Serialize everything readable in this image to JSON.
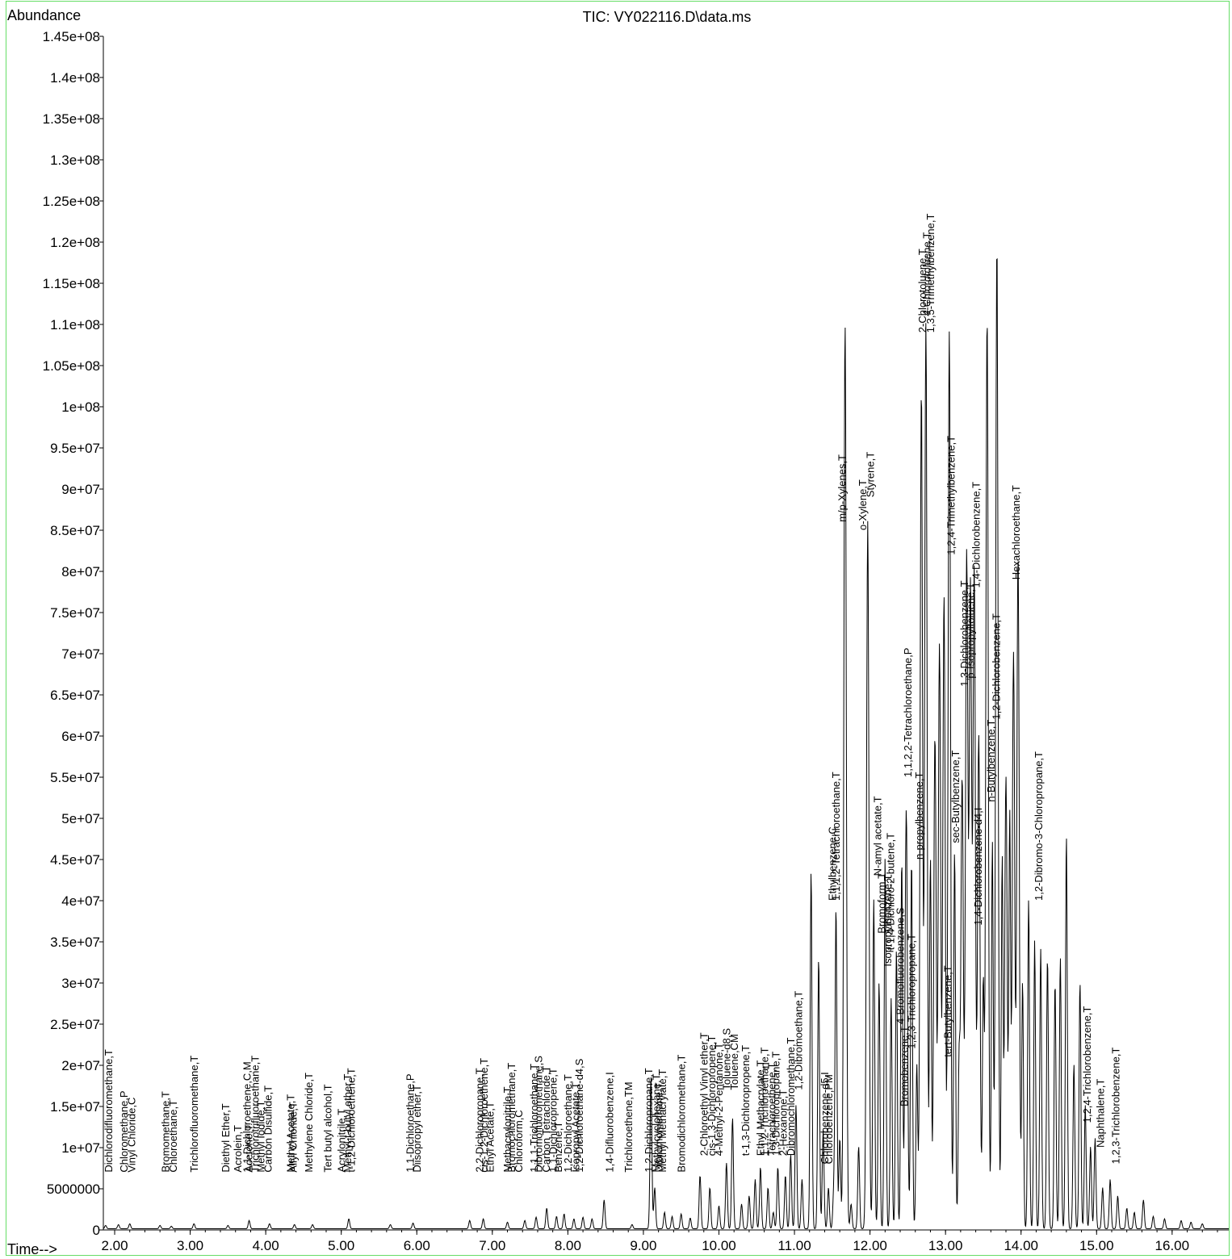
{
  "chart_data": {
    "type": "line",
    "title": "TIC: VY022116.D\\data.ms",
    "ylabel": "Abundance",
    "xlabel": "Time-->",
    "xlim": [
      1.85,
      16.75
    ],
    "ylim": [
      0,
      145000000
    ],
    "x_ticks": [
      2.0,
      3.0,
      4.0,
      5.0,
      6.0,
      7.0,
      8.0,
      9.0,
      10.0,
      11.0,
      12.0,
      13.0,
      14.0,
      15.0,
      16.0
    ],
    "x_tick_labels": [
      "2.00",
      "3.00",
      "4.00",
      "5.00",
      "6.00",
      "7.00",
      "8.00",
      "9.00",
      "10.00",
      "11.00",
      "12.00",
      "13.00",
      "14.00",
      "15.00",
      "16.00"
    ],
    "y_ticks": [
      0,
      5000000,
      10000000,
      15000000,
      20000000,
      25000000,
      30000000,
      35000000,
      40000000,
      45000000,
      50000000,
      55000000,
      60000000,
      65000000,
      70000000,
      75000000,
      80000000,
      85000000,
      90000000,
      95000000,
      100000000,
      105000000,
      110000000,
      115000000,
      120000000,
      125000000,
      130000000,
      135000000,
      140000000,
      145000000
    ],
    "y_tick_labels": [
      "0",
      "5000000",
      "1e+07",
      "1.5e+07",
      "2e+07",
      "2.5e+07",
      "3e+07",
      "3.5e+07",
      "4e+07",
      "4.5e+07",
      "5e+07",
      "5.5e+07",
      "6e+07",
      "6.5e+07",
      "7e+07",
      "7.5e+07",
      "8e+07",
      "8.5e+07",
      "9e+07",
      "9.5e+07",
      "1e+08",
      "1.05e+08",
      "1.1e+08",
      "1.15e+08",
      "1.2e+08",
      "1.25e+08",
      "1.3e+08",
      "1.35e+08",
      "1.4e+08",
      "1.45e+08"
    ],
    "series": [
      {
        "color": "#000000",
        "peaks": [
          {
            "rt": 1.88,
            "h": 400000
          },
          {
            "rt": 2.05,
            "h": 500000
          },
          {
            "rt": 2.2,
            "h": 600000
          },
          {
            "rt": 2.6,
            "h": 400000
          },
          {
            "rt": 2.75,
            "h": 300000
          },
          {
            "rt": 3.05,
            "h": 600000
          },
          {
            "rt": 3.5,
            "h": 400000
          },
          {
            "rt": 3.78,
            "h": 1000000
          },
          {
            "rt": 4.05,
            "h": 600000
          },
          {
            "rt": 4.38,
            "h": 500000
          },
          {
            "rt": 4.62,
            "h": 500000
          },
          {
            "rt": 5.1,
            "h": 1200000
          },
          {
            "rt": 5.65,
            "h": 500000
          },
          {
            "rt": 5.95,
            "h": 700000
          },
          {
            "rt": 6.7,
            "h": 1000000
          },
          {
            "rt": 6.88,
            "h": 1200000
          },
          {
            "rt": 7.2,
            "h": 800000
          },
          {
            "rt": 7.43,
            "h": 1000000
          },
          {
            "rt": 7.58,
            "h": 1400000
          },
          {
            "rt": 7.72,
            "h": 2500000
          },
          {
            "rt": 7.85,
            "h": 1500000
          },
          {
            "rt": 7.95,
            "h": 1800000
          },
          {
            "rt": 8.08,
            "h": 1200000
          },
          {
            "rt": 8.2,
            "h": 1400000
          },
          {
            "rt": 8.32,
            "h": 1200000
          },
          {
            "rt": 8.48,
            "h": 3500000
          },
          {
            "rt": 8.85,
            "h": 500000
          },
          {
            "rt": 9.1,
            "h": 18500000
          },
          {
            "rt": 9.15,
            "h": 5000000
          },
          {
            "rt": 9.28,
            "h": 2000000
          },
          {
            "rt": 9.38,
            "h": 1500000
          },
          {
            "rt": 9.5,
            "h": 1800000
          },
          {
            "rt": 9.62,
            "h": 1300000
          },
          {
            "rt": 9.75,
            "h": 6500000
          },
          {
            "rt": 9.88,
            "h": 5000000
          },
          {
            "rt": 10.0,
            "h": 2800000
          },
          {
            "rt": 10.1,
            "h": 8000000
          },
          {
            "rt": 10.18,
            "h": 13500000
          },
          {
            "rt": 10.3,
            "h": 3000000
          },
          {
            "rt": 10.4,
            "h": 4000000
          },
          {
            "rt": 10.48,
            "h": 6000000
          },
          {
            "rt": 10.55,
            "h": 7500000
          },
          {
            "rt": 10.65,
            "h": 5000000
          },
          {
            "rt": 10.72,
            "h": 2000000
          },
          {
            "rt": 10.78,
            "h": 7500000
          },
          {
            "rt": 10.88,
            "h": 6500000
          },
          {
            "rt": 10.95,
            "h": 9000000
          },
          {
            "rt": 11.02,
            "h": 15000000
          },
          {
            "rt": 11.1,
            "h": 6000000
          },
          {
            "rt": 11.22,
            "h": 43500000
          },
          {
            "rt": 11.32,
            "h": 33000000
          },
          {
            "rt": 11.38,
            "h": 12000000
          },
          {
            "rt": 11.45,
            "h": 5000000
          },
          {
            "rt": 11.52,
            "h": 4500000
          },
          {
            "rt": 11.55,
            "h": 39000000
          },
          {
            "rt": 11.6,
            "h": 11000000
          },
          {
            "rt": 11.67,
            "h": 110000000
          },
          {
            "rt": 11.75,
            "h": 3000000
          },
          {
            "rt": 11.85,
            "h": 10000000
          },
          {
            "rt": 11.97,
            "h": 86000000
          },
          {
            "rt": 12.05,
            "h": 40000000
          },
          {
            "rt": 12.12,
            "h": 30000000
          },
          {
            "rt": 12.2,
            "h": 45000000
          },
          {
            "rt": 12.28,
            "h": 28000000
          },
          {
            "rt": 12.35,
            "h": 34000000
          },
          {
            "rt": 12.42,
            "h": 45000000
          },
          {
            "rt": 12.48,
            "h": 51000000
          },
          {
            "rt": 12.55,
            "h": 45000000
          },
          {
            "rt": 12.62,
            "h": 20000000
          },
          {
            "rt": 12.68,
            "h": 102000000
          },
          {
            "rt": 12.74,
            "h": 110000000
          },
          {
            "rt": 12.8,
            "h": 45000000
          },
          {
            "rt": 12.86,
            "h": 60000000
          },
          {
            "rt": 12.92,
            "h": 71000000
          },
          {
            "rt": 12.98,
            "h": 77000000
          },
          {
            "rt": 13.05,
            "h": 109000000
          },
          {
            "rt": 13.12,
            "h": 46000000
          },
          {
            "rt": 13.18,
            "h": 20000000
          },
          {
            "rt": 13.22,
            "h": 55000000
          },
          {
            "rt": 13.28,
            "h": 82000000
          },
          {
            "rt": 13.33,
            "h": 78000000
          },
          {
            "rt": 13.38,
            "h": 80000000
          },
          {
            "rt": 13.44,
            "h": 60000000
          },
          {
            "rt": 13.5,
            "h": 30000000
          },
          {
            "rt": 13.55,
            "h": 111000000
          },
          {
            "rt": 13.62,
            "h": 47000000
          },
          {
            "rt": 13.68,
            "h": 120000000
          },
          {
            "rt": 13.75,
            "h": 45000000
          },
          {
            "rt": 13.8,
            "h": 55000000
          },
          {
            "rt": 13.85,
            "h": 50000000
          },
          {
            "rt": 13.9,
            "h": 70000000
          },
          {
            "rt": 13.96,
            "h": 82000000
          },
          {
            "rt": 14.02,
            "h": 30000000
          },
          {
            "rt": 14.1,
            "h": 40000000
          },
          {
            "rt": 14.18,
            "h": 35000000
          },
          {
            "rt": 14.26,
            "h": 34000000
          },
          {
            "rt": 14.35,
            "h": 33000000
          },
          {
            "rt": 14.45,
            "h": 30000000
          },
          {
            "rt": 14.52,
            "h": 33000000
          },
          {
            "rt": 14.6,
            "h": 48000000
          },
          {
            "rt": 14.7,
            "h": 20000000
          },
          {
            "rt": 14.78,
            "h": 30000000
          },
          {
            "rt": 14.85,
            "h": 15000000
          },
          {
            "rt": 14.92,
            "h": 10000000
          },
          {
            "rt": 14.98,
            "h": 11000000
          },
          {
            "rt": 15.08,
            "h": 5000000
          },
          {
            "rt": 15.18,
            "h": 6000000
          },
          {
            "rt": 15.28,
            "h": 4000000
          },
          {
            "rt": 15.4,
            "h": 2500000
          },
          {
            "rt": 15.5,
            "h": 2000000
          },
          {
            "rt": 15.62,
            "h": 3500000
          },
          {
            "rt": 15.75,
            "h": 1500000
          },
          {
            "rt": 15.9,
            "h": 1200000
          },
          {
            "rt": 16.12,
            "h": 1000000
          },
          {
            "rt": 16.25,
            "h": 800000
          },
          {
            "rt": 16.4,
            "h": 600000
          }
        ]
      }
    ],
    "annotations": [
      {
        "text": "Dichlorodifluoromethane,T",
        "rt": 1.97,
        "base": 7000000
      },
      {
        "text": "Chloromethane,P",
        "rt": 2.17,
        "base": 7000000
      },
      {
        "text": "Vinyl Chloride,C",
        "rt": 2.27,
        "base": 7000000
      },
      {
        "text": "Bromomethane,T",
        "rt": 2.72,
        "base": 7000000
      },
      {
        "text": "Chloroethane,T",
        "rt": 2.82,
        "base": 7000000
      },
      {
        "text": "Trichlorofluoromethane,T",
        "rt": 3.1,
        "base": 7000000
      },
      {
        "text": "Diethyl Ether,T",
        "rt": 3.52,
        "base": 7000000
      },
      {
        "text": "Acrolein,T",
        "rt": 3.68,
        "base": 7000000
      },
      {
        "text": "1,1-Dichloroethene,C,M",
        "rt": 3.8,
        "base": 7000000
      },
      {
        "text": "Acetone,T",
        "rt": 3.82,
        "base": 7000000
      },
      {
        "text": "Trichlorotrifluoroethane,T",
        "rt": 3.91,
        "base": 7000000
      },
      {
        "text": "Methyl Iodide,T",
        "rt": 3.98,
        "base": 7000000
      },
      {
        "text": "Carbon Disulfide,T",
        "rt": 4.08,
        "base": 7000000
      },
      {
        "text": "Methyl Acetate,T",
        "rt": 4.38,
        "base": 7000000
      },
      {
        "text": "Allyl Chloride,T",
        "rt": 4.41,
        "base": 7000000
      },
      {
        "text": "Methylene Chloride,T",
        "rt": 4.62,
        "base": 7000000
      },
      {
        "text": "Tert butyl alcohol,T",
        "rt": 4.87,
        "base": 7000000
      },
      {
        "text": "Acrylonitrile,T",
        "rt": 5.05,
        "base": 7000000
      },
      {
        "text": "Methyl-t-butyl ether,T",
        "rt": 5.13,
        "base": 7000000
      },
      {
        "text": "t-1,2-Dichloroethene,T",
        "rt": 5.18,
        "base": 7000000
      },
      {
        "text": "1,1-Dichloroethane,P",
        "rt": 5.96,
        "base": 7000000
      },
      {
        "text": "Diisopropyl ether,T",
        "rt": 6.05,
        "base": 7000000
      },
      {
        "text": "2,2-Dichloropropane,T",
        "rt": 6.88,
        "base": 7000000
      },
      {
        "text": "cis-1,2-Dichloroethene,T",
        "rt": 6.94,
        "base": 7000000
      },
      {
        "text": "Ethyl Acetate,T",
        "rt": 7.02,
        "base": 7000000
      },
      {
        "text": "Methacrylonitrile,T",
        "rt": 7.25,
        "base": 7000000
      },
      {
        "text": "Bromochloromethane,T",
        "rt": 7.3,
        "base": 7000000
      },
      {
        "text": "Chloroform,C",
        "rt": 7.4,
        "base": 7000000
      },
      {
        "text": "1,1,1-Trichloroethane,T",
        "rt": 7.6,
        "base": 7000000
      },
      {
        "text": "Dibromofluoromethane,S",
        "rt": 7.66,
        "base": 7000000
      },
      {
        "text": "Carbon Tetrachloride,T",
        "rt": 7.76,
        "base": 7000000
      },
      {
        "text": "1,1-Dichloropropene,T",
        "rt": 7.85,
        "base": 7000000
      },
      {
        "text": "Benzene,T",
        "rt": 7.92,
        "base": 7000000
      },
      {
        "text": "1,2-Dichloroethane,T",
        "rt": 8.05,
        "base": 7000000
      },
      {
        "text": "Isopropyl Acetate,T",
        "rt": 8.15,
        "base": 7000000
      },
      {
        "text": "1,2-Dichloroethane-d4,S",
        "rt": 8.2,
        "base": 7000000
      },
      {
        "text": "1,4-Difluorobenzene,I",
        "rt": 8.6,
        "base": 7000000
      },
      {
        "text": "Trichloroethene,TM",
        "rt": 8.85,
        "base": 7000000
      },
      {
        "text": "1,2-Dichloropropane,T",
        "rt": 9.12,
        "base": 7000000
      },
      {
        "text": "Methylcyclohexane,T",
        "rt": 9.22,
        "base": 7000000
      },
      {
        "text": "Dibromomethane,T",
        "rt": 9.25,
        "base": 7000000
      },
      {
        "text": "Methyl Methacrylate,T",
        "rt": 9.3,
        "base": 7000000
      },
      {
        "text": "Bromodichloromethane,T",
        "rt": 9.55,
        "base": 7000000
      },
      {
        "text": "2-Chloroethyl Vinyl ether,T",
        "rt": 9.85,
        "base": 9000000
      },
      {
        "text": "cis-1,3-Dichloropropene,T",
        "rt": 9.95,
        "base": 9000000
      },
      {
        "text": "4-Methyl-2-Pentanone,T",
        "rt": 10.05,
        "base": 9000000
      },
      {
        "text": "Toluene-d8,S",
        "rt": 10.15,
        "base": 17000000
      },
      {
        "text": "Toluene,CM",
        "rt": 10.25,
        "base": 17000000
      },
      {
        "text": "t-1,3-Dichloropropene,T",
        "rt": 10.4,
        "base": 9000000
      },
      {
        "text": "Ethyl Methacrylate,T",
        "rt": 10.6,
        "base": 9000000
      },
      {
        "text": "1,1,2-Trichloroethane,T",
        "rt": 10.65,
        "base": 9000000
      },
      {
        "text": "Tetrachloroethene,T",
        "rt": 10.75,
        "base": 9000000
      },
      {
        "text": "1,3-Dichloropropane,T",
        "rt": 10.8,
        "base": 9000000
      },
      {
        "text": "2-Hexanone,T",
        "rt": 10.9,
        "base": 9000000
      },
      {
        "text": "Dibromochloromethane,T",
        "rt": 11.0,
        "base": 9000000
      },
      {
        "text": "1,2-Dibromoethane,T",
        "rt": 11.1,
        "base": 17000000
      },
      {
        "text": "Chlorobenzene-d5,I",
        "rt": 11.45,
        "base": 8000000
      },
      {
        "text": "Chlorobenzene,PM",
        "rt": 11.5,
        "base": 8000000
      },
      {
        "text": "Ethylbenzene,C",
        "rt": 11.55,
        "base": 40000000
      },
      {
        "text": "1,1,1,2-Tetrachloroethane,T",
        "rt": 11.6,
        "base": 40000000
      },
      {
        "text": "m/p-Xylenes,T",
        "rt": 11.68,
        "base": 86000000
      },
      {
        "text": "o-Xylene,T",
        "rt": 11.95,
        "base": 85000000
      },
      {
        "text": "Styrene,T",
        "rt": 12.05,
        "base": 89000000
      },
      {
        "text": "N-amyl acetate,T",
        "rt": 12.15,
        "base": 43000000
      },
      {
        "text": "Bromoform,T",
        "rt": 12.2,
        "base": 36000000
      },
      {
        "text": "Isopropylbenzene,T",
        "rt": 12.28,
        "base": 32000000
      },
      {
        "text": "t-1,4-Dichloro-2-butene,T",
        "rt": 12.32,
        "base": 34000000
      },
      {
        "text": "4-Bromofluorobenzene,S",
        "rt": 12.45,
        "base": 25000000
      },
      {
        "text": "1,1,2,2-Tetrachloroethane,P",
        "rt": 12.55,
        "base": 55000000
      },
      {
        "text": "1,2,3-Trichloropropane,T",
        "rt": 12.6,
        "base": 22000000
      },
      {
        "text": "Bromobenzene,T",
        "rt": 12.5,
        "base": 15000000
      },
      {
        "text": "n-propylbenzene,T",
        "rt": 12.7,
        "base": 45000000
      },
      {
        "text": "2-Chlorotoluene,T",
        "rt": 12.74,
        "base": 109000000
      },
      {
        "text": "4-Chlorotoluene,T",
        "rt": 12.8,
        "base": 111000000
      },
      {
        "text": "1,3,5-Trimethylbenzene,T",
        "rt": 12.85,
        "base": 109000000
      },
      {
        "text": "tert-Butylbenzene,T",
        "rt": 13.08,
        "base": 21000000
      },
      {
        "text": "1,2,4-Trimethylbenzene,T",
        "rt": 13.12,
        "base": 82000000
      },
      {
        "text": "sec-Butylbenzene,T",
        "rt": 13.18,
        "base": 47000000
      },
      {
        "text": "1,3-Dichlorobenzene,T",
        "rt": 13.3,
        "base": 66000000
      },
      {
        "text": "p-Isopropyltoluene,T",
        "rt": 13.38,
        "base": 67000000
      },
      {
        "text": "1,4-Dichlorobenzene,T",
        "rt": 13.45,
        "base": 78000000
      },
      {
        "text": "1,4-Dichlorobenzene-d4,I",
        "rt": 13.48,
        "base": 37000000
      },
      {
        "text": "n-Butylbenzene,T",
        "rt": 13.65,
        "base": 52000000
      },
      {
        "text": "1,2-Dichlorobenzene,T",
        "rt": 13.72,
        "base": 62000000
      },
      {
        "text": "Hexachloroethane,T",
        "rt": 13.98,
        "base": 79000000
      },
      {
        "text": "1,2-Dibromo-3-Chloropropane,T",
        "rt": 14.28,
        "base": 40000000
      },
      {
        "text": "1,2,4-Trichlorobenzene,T",
        "rt": 14.92,
        "base": 13000000
      },
      {
        "text": "Naphthalene,T",
        "rt": 15.1,
        "base": 10000000
      },
      {
        "text": "1,2,3-Trichlorobenzene,T",
        "rt": 15.3,
        "base": 8000000
      }
    ]
  }
}
